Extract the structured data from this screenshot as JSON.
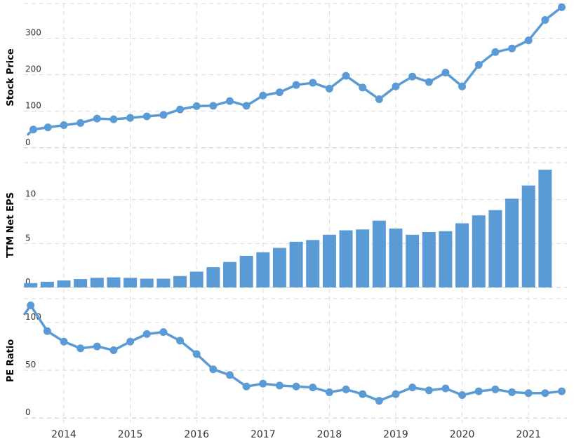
{
  "colors": {
    "series": "#5b9bd5",
    "grid": "#d9d9d9",
    "text": "#333333"
  },
  "x_axis": {
    "ticks": [
      "2014",
      "2015",
      "2016",
      "2017",
      "2018",
      "2019",
      "2020",
      "2021"
    ]
  },
  "chart_data": [
    {
      "type": "line",
      "ylabel": "Stock Price",
      "yticks": [
        0,
        100,
        200,
        300
      ],
      "ylim": [
        -10,
        395
      ],
      "x": [
        2013.45,
        2013.54,
        2013.76,
        2014.0,
        2014.25,
        2014.5,
        2014.75,
        2015.0,
        2015.25,
        2015.5,
        2015.75,
        2016.0,
        2016.25,
        2016.5,
        2016.75,
        2017.0,
        2017.25,
        2017.5,
        2017.75,
        2018.0,
        2018.25,
        2018.5,
        2018.75,
        2019.0,
        2019.25,
        2019.5,
        2019.75,
        2020.0,
        2020.25,
        2020.5,
        2020.75,
        2021.0,
        2021.25,
        2021.5
      ],
      "y": [
        35,
        50,
        56,
        62,
        68,
        80,
        78,
        82,
        86,
        90,
        105,
        114,
        115,
        128,
        115,
        143,
        152,
        172,
        178,
        162,
        197,
        165,
        133,
        168,
        195,
        180,
        206,
        168,
        227,
        262,
        272,
        294,
        350,
        385
      ],
      "marker_from_index": 1
    },
    {
      "type": "bar",
      "ylabel": "TTM Net EPS",
      "yticks": [
        0,
        5,
        10
      ],
      "ylim": [
        0,
        14.2
      ],
      "x": [
        2013.5,
        2013.75,
        2014.0,
        2014.25,
        2014.5,
        2014.75,
        2015.0,
        2015.25,
        2015.5,
        2015.75,
        2016.0,
        2016.25,
        2016.5,
        2016.75,
        2017.0,
        2017.25,
        2017.5,
        2017.75,
        2018.0,
        2018.25,
        2018.5,
        2018.75,
        2019.0,
        2019.25,
        2019.5,
        2019.75,
        2020.0,
        2020.25,
        2020.5,
        2020.75,
        2021.0,
        2021.25,
        2021.5
      ],
      "values": [
        0.5,
        0.65,
        0.8,
        0.95,
        1.1,
        1.15,
        1.1,
        1.0,
        1.0,
        1.3,
        1.8,
        2.3,
        2.9,
        3.6,
        4.0,
        4.5,
        5.2,
        5.4,
        6.0,
        6.5,
        6.6,
        7.6,
        6.7,
        6.0,
        6.3,
        6.4,
        7.3,
        8.2,
        8.8,
        10.1,
        11.6,
        13.4,
        null
      ]
    },
    {
      "type": "line",
      "ylabel": "PE Ratio",
      "yticks": [
        0,
        50,
        100
      ],
      "ylim": [
        -5,
        125
      ],
      "x": [
        2013.4,
        2013.5,
        2013.75,
        2014.0,
        2014.25,
        2014.5,
        2014.75,
        2015.0,
        2015.25,
        2015.5,
        2015.75,
        2016.0,
        2016.25,
        2016.5,
        2016.75,
        2017.0,
        2017.25,
        2017.5,
        2017.75,
        2018.0,
        2018.25,
        2018.5,
        2018.75,
        2019.0,
        2019.25,
        2019.5,
        2019.75,
        2020.0,
        2020.25,
        2020.5,
        2020.75,
        2021.0,
        2021.25,
        2021.5
      ],
      "y": [
        108,
        118,
        91,
        80,
        73,
        75,
        71,
        80,
        88,
        90,
        81,
        67,
        51,
        45,
        33,
        36,
        34,
        33,
        32,
        27,
        30,
        25,
        18,
        25,
        32,
        29,
        31,
        24,
        28,
        30,
        27,
        26,
        26,
        28
      ],
      "marker_from_index": 1
    }
  ]
}
